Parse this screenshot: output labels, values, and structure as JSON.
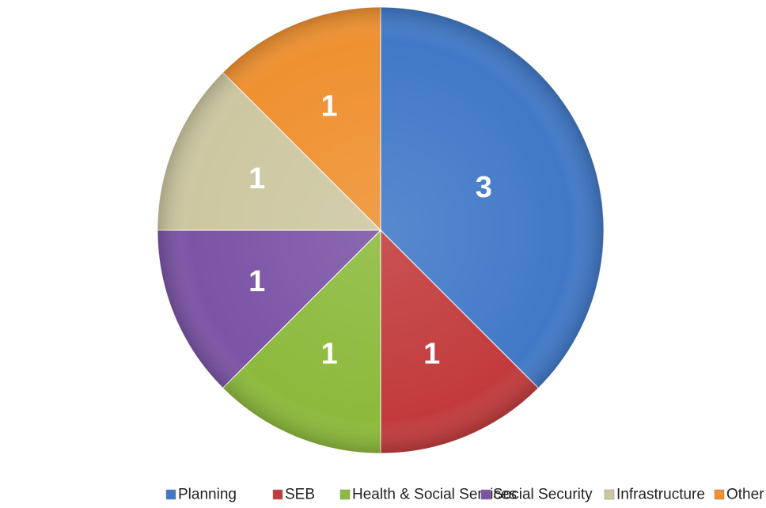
{
  "chart_data": {
    "type": "pie",
    "categories": [
      "Planning",
      "SEB",
      "Health & Social Services",
      "Social Security",
      "Infrastructure",
      "Other"
    ],
    "values": [
      3,
      1,
      1,
      1,
      1,
      1
    ],
    "colors": [
      "#4179c8",
      "#c23b3c",
      "#8cba3c",
      "#7b54a6",
      "#cdc7a1",
      "#ef9130"
    ],
    "legend": "bottom"
  }
}
